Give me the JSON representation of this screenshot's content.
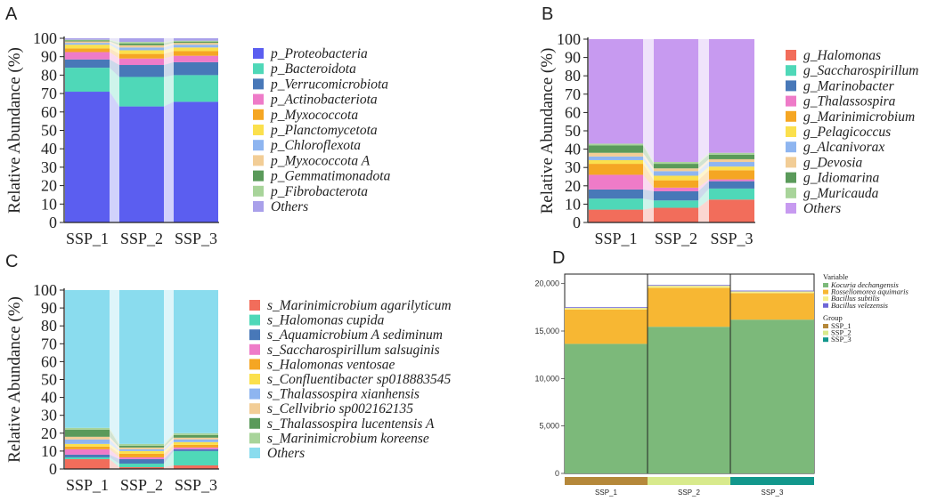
{
  "panels": [
    "A",
    "B",
    "C",
    "D"
  ],
  "chart_data": [
    {
      "id": "A",
      "type": "bar",
      "stacked": true,
      "title": "",
      "ylabel": "Relative Abundance (%)",
      "ylim": [
        0,
        100
      ],
      "yticks": [
        "0",
        "10",
        "20",
        "30",
        "40",
        "50",
        "60",
        "70",
        "80",
        "90",
        "100"
      ],
      "categories": [
        "SSP_1",
        "SSP_2",
        "SSP_3"
      ],
      "series": [
        {
          "name": "p_Proteobacteria",
          "color": "#5b5ef0",
          "values": [
            71,
            63,
            65.5
          ]
        },
        {
          "name": "p_Bacteroidota",
          "color": "#4fd8b8",
          "values": [
            13,
            16,
            14.5
          ]
        },
        {
          "name": "p_Verrucomicrobiota",
          "color": "#4878b8",
          "values": [
            4.5,
            6.5,
            7
          ]
        },
        {
          "name": "p_Actinobacteriota",
          "color": "#ee7bc8",
          "values": [
            4,
            3.5,
            3.5
          ]
        },
        {
          "name": "p_Myxococcota",
          "color": "#f5a623",
          "values": [
            2,
            2.5,
            2.5
          ]
        },
        {
          "name": "p_Planctomycetota",
          "color": "#fbe04d",
          "values": [
            2,
            2,
            2
          ]
        },
        {
          "name": "p_Chloroflexota",
          "color": "#8eb5f0",
          "values": [
            1,
            1.5,
            1.5
          ]
        },
        {
          "name": "p_Myxococcota A",
          "color": "#f2cd96",
          "values": [
            0.8,
            1.2,
            1
          ]
        },
        {
          "name": "p_Gemmatimonadota",
          "color": "#5a9a5a",
          "values": [
            0.5,
            1,
            0.7
          ]
        },
        {
          "name": "p_Fibrobacterota",
          "color": "#a8d49a",
          "values": [
            0.4,
            0.8,
            0.5
          ]
        },
        {
          "name": "Others",
          "color": "#a9a0ea",
          "values": [
            0.8,
            2,
            1.3
          ]
        }
      ]
    },
    {
      "id": "B",
      "type": "bar",
      "stacked": true,
      "title": "",
      "ylabel": "Relative Abundance (%)",
      "ylim": [
        0,
        100
      ],
      "yticks": [
        "0",
        "10",
        "20",
        "30",
        "40",
        "50",
        "60",
        "70",
        "80",
        "90",
        "100"
      ],
      "categories": [
        "SSP_1",
        "SSP_2",
        "SSP_3"
      ],
      "series": [
        {
          "name": "g_Halomonas",
          "color": "#f26d5b",
          "values": [
            7,
            8,
            12.5
          ]
        },
        {
          "name": "g_Saccharospirillum",
          "color": "#4fd8b8",
          "values": [
            6,
            4,
            6
          ]
        },
        {
          "name": "g_Marinobacter",
          "color": "#4878b8",
          "values": [
            5,
            5,
            4
          ]
        },
        {
          "name": "g_Thalassospira",
          "color": "#ee7bc8",
          "values": [
            8,
            2,
            1
          ]
        },
        {
          "name": "g_Marinimicrobium",
          "color": "#f5a623",
          "values": [
            6,
            4,
            5
          ]
        },
        {
          "name": "g_Pelagicoccus",
          "color": "#fbe04d",
          "values": [
            2,
            2.5,
            2
          ]
        },
        {
          "name": "g_Alcanivorax",
          "color": "#8eb5f0",
          "values": [
            2,
            2.5,
            2.5
          ]
        },
        {
          "name": "g_Devosia",
          "color": "#f2cd96",
          "values": [
            2,
            1.5,
            1.5
          ]
        },
        {
          "name": "g_Idiomarina",
          "color": "#5a9a5a",
          "values": [
            4,
            2.5,
            2.5
          ]
        },
        {
          "name": "g_Muricauda",
          "color": "#a8d49a",
          "values": [
            1,
            1,
            1
          ]
        },
        {
          "name": "Others",
          "color": "#c79af0",
          "values": [
            57,
            67,
            62
          ]
        }
      ]
    },
    {
      "id": "C",
      "type": "bar",
      "stacked": true,
      "title": "",
      "ylabel": "Relative Abundance (%)",
      "ylim": [
        0,
        100
      ],
      "yticks": [
        "0",
        "10",
        "20",
        "30",
        "40",
        "50",
        "60",
        "70",
        "80",
        "90",
        "100"
      ],
      "categories": [
        "SSP_1",
        "SSP_2",
        "SSP_3"
      ],
      "series": [
        {
          "name": "s_Marinimicrobium agarilyticum",
          "color": "#f26d5b",
          "values": [
            5.5,
            1,
            2
          ]
        },
        {
          "name": "s_Halomonas cupida",
          "color": "#4fd8b8",
          "values": [
            1,
            2,
            8
          ]
        },
        {
          "name": "s_Aquamicrobium A sediminum",
          "color": "#4878b8",
          "values": [
            1.5,
            2.5,
            1
          ]
        },
        {
          "name": "s_Saccharospirillum salsuginis",
          "color": "#ee7bc8",
          "values": [
            3,
            1,
            1
          ]
        },
        {
          "name": "s_Halomonas ventosae",
          "color": "#f5a623",
          "values": [
            1.5,
            2,
            1.5
          ]
        },
        {
          "name": "s_Confluentibacter sp018883545",
          "color": "#fbe04d",
          "values": [
            1.5,
            1.5,
            1.5
          ]
        },
        {
          "name": "s_Thalassospira xianhensis",
          "color": "#8eb5f0",
          "values": [
            2.5,
            1,
            1.5
          ]
        },
        {
          "name": "s_Cellvibrio sp002162135",
          "color": "#f2cd96",
          "values": [
            1.5,
            1,
            1
          ]
        },
        {
          "name": "s_Thalassospira lucentensis A",
          "color": "#5a9a5a",
          "values": [
            4,
            1,
            1.5
          ]
        },
        {
          "name": "s_Marinimicrobium koreense",
          "color": "#a8d49a",
          "values": [
            1,
            1,
            1
          ]
        },
        {
          "name": "Others",
          "color": "#8adcee",
          "values": [
            77,
            86,
            80
          ]
        }
      ]
    },
    {
      "id": "D",
      "type": "bar",
      "stacked": true,
      "title": "",
      "ylim": [
        0,
        21000
      ],
      "yticks": [
        "0",
        "5,000",
        "10,000",
        "15,000",
        "20,000"
      ],
      "categories": [
        "SSP_1",
        "SSP_2",
        "SSP_3"
      ],
      "legend_variable_title": "Variable",
      "legend_group_title": "Group",
      "series": [
        {
          "name": "Kocuria dechangensis",
          "color": "#7cb97a",
          "values": [
            13650,
            15450,
            16200
          ]
        },
        {
          "name": "Rossellomorea aquimaris",
          "color": "#f7b733",
          "values": [
            3600,
            4100,
            2800
          ]
        },
        {
          "name": "Bacillus subtilis",
          "color": "#f5ef8c",
          "values": [
            180,
            220,
            180
          ]
        },
        {
          "name": "Bacillus velezensis",
          "color": "#6e67d6",
          "values": [
            80,
            80,
            80
          ]
        }
      ],
      "groups": [
        {
          "name": "SSP_1",
          "color": "#b5883a"
        },
        {
          "name": "SSP_2",
          "color": "#d8ea8c"
        },
        {
          "name": "SSP_3",
          "color": "#12978c"
        }
      ]
    }
  ]
}
